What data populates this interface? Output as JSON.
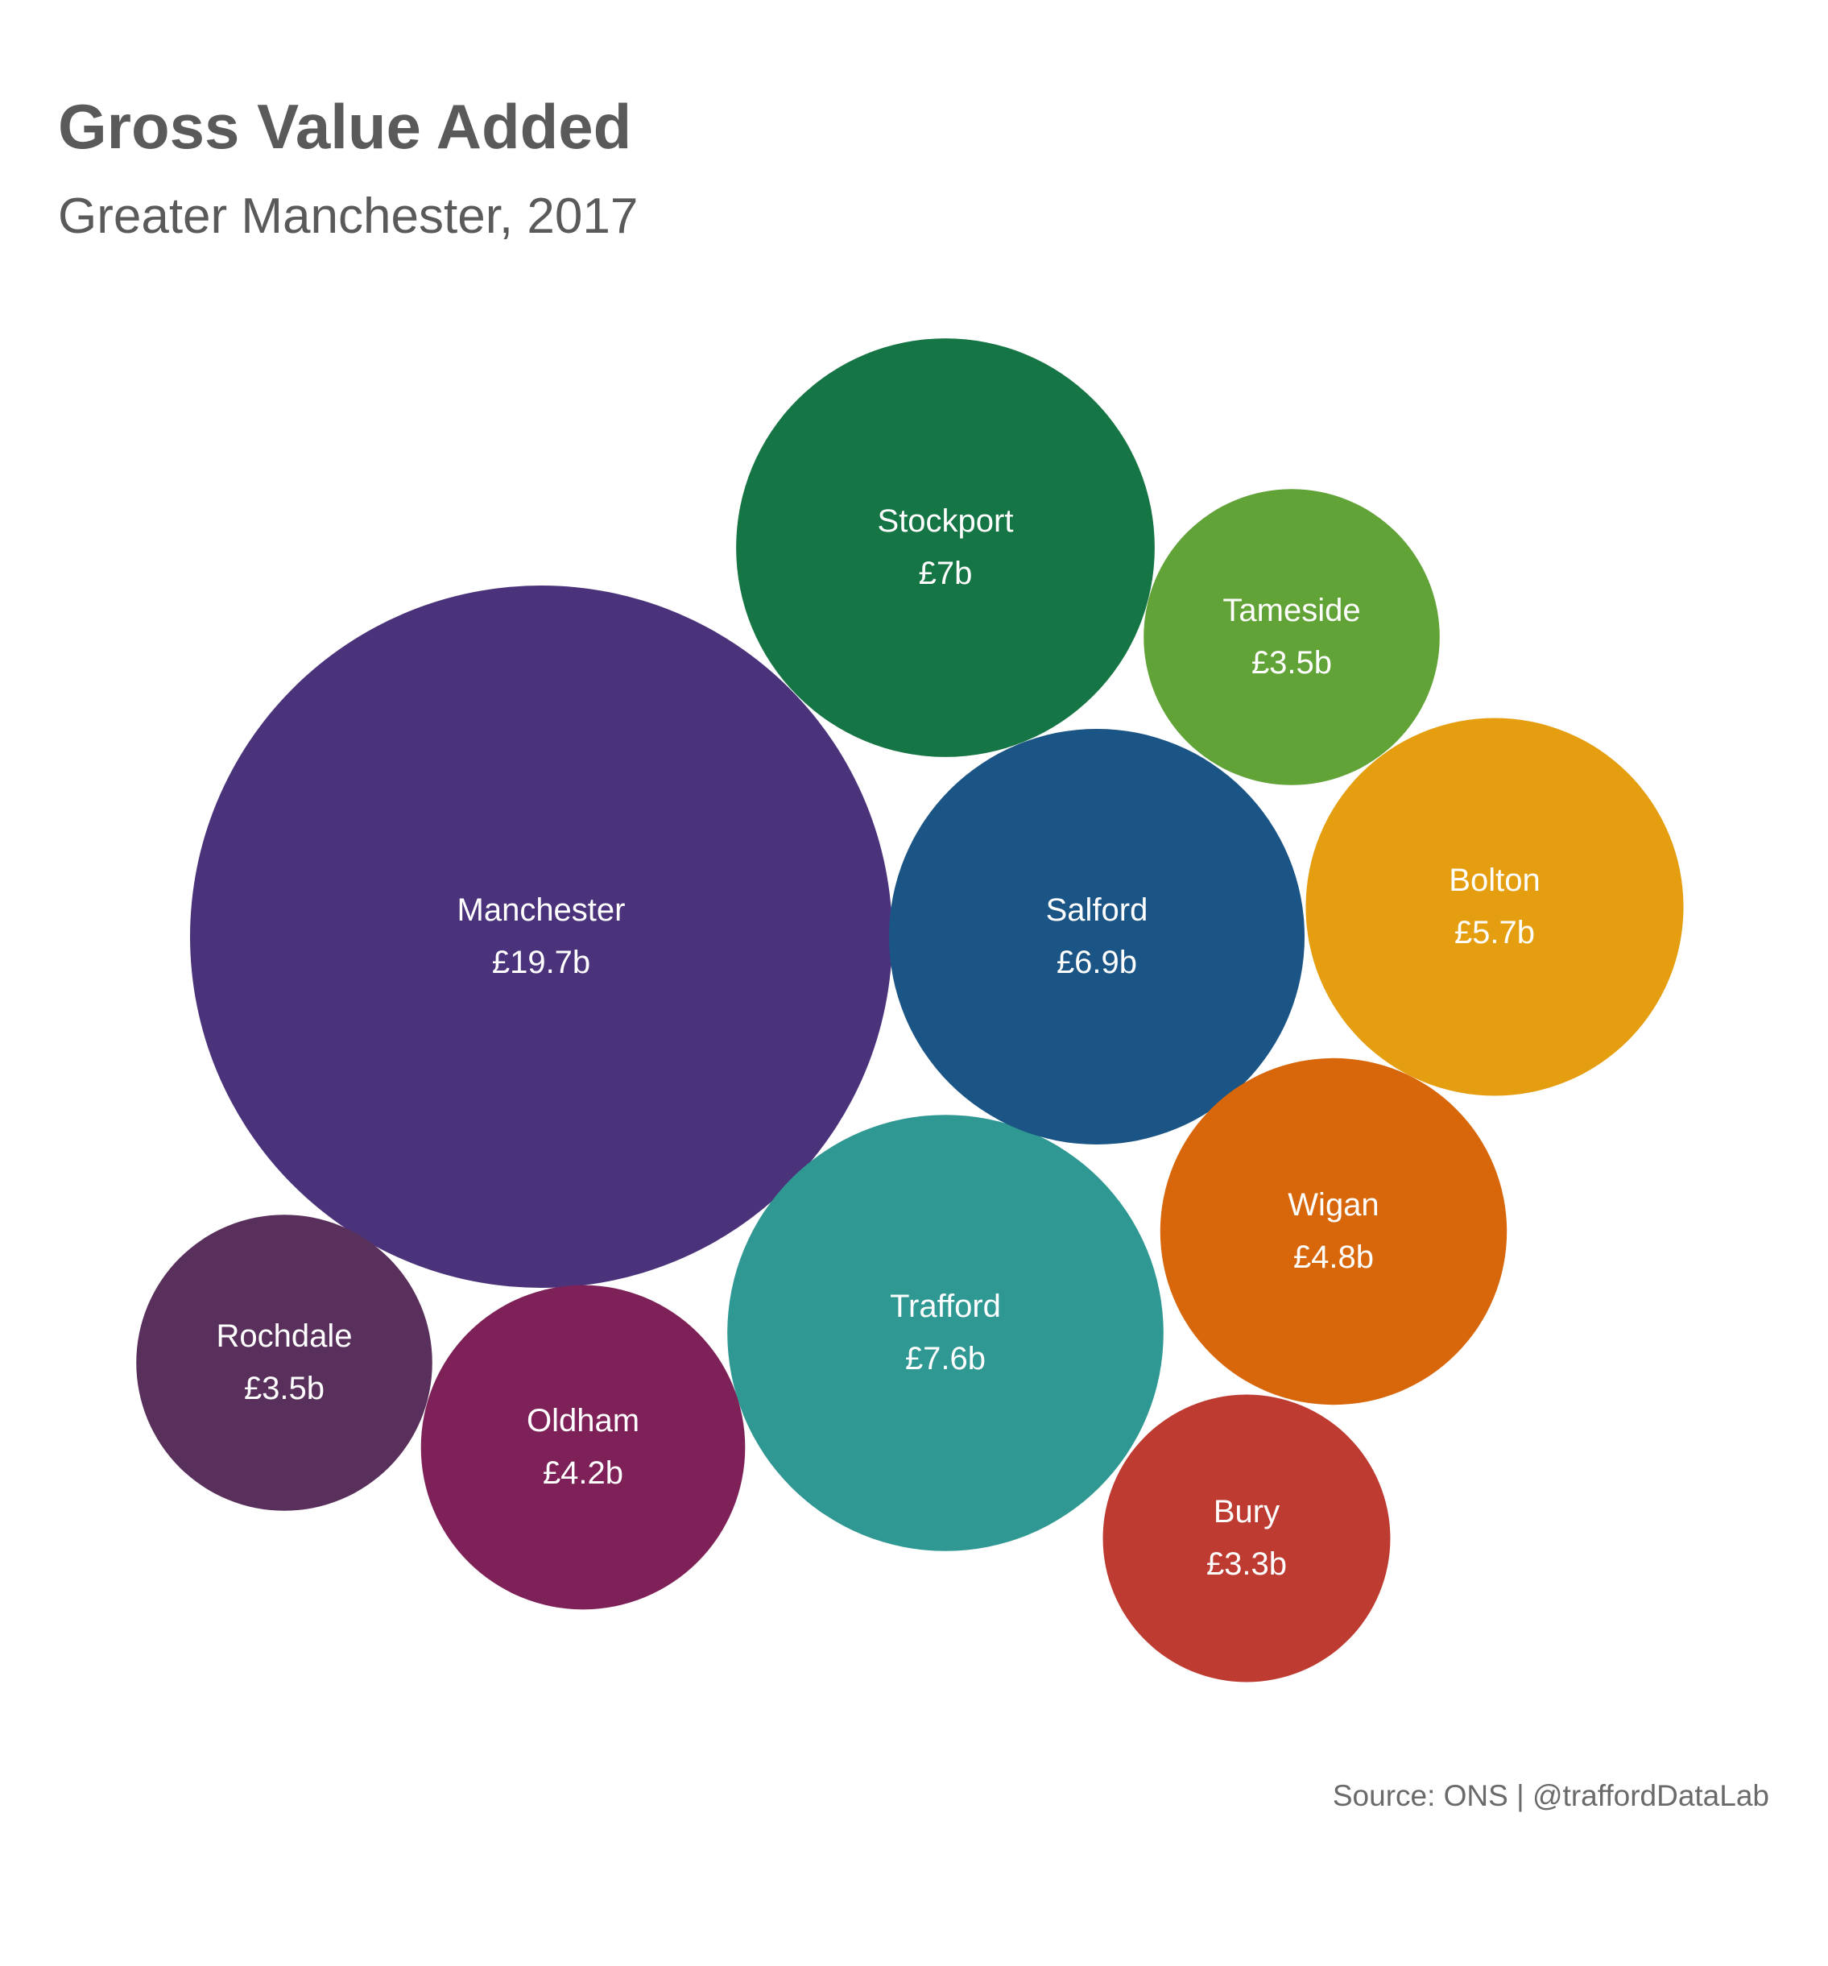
{
  "title": "Gross Value Added",
  "subtitle": "Greater Manchester, 2017",
  "caption": "Source: ONS | @traffordDataLab",
  "chart_data": {
    "type": "bubble",
    "title": "Gross Value Added",
    "subtitle": "Greater Manchester, 2017",
    "unit": "£ billion",
    "bubbles": [
      {
        "name": "Manchester",
        "value": 19.7,
        "label": "£19.7b",
        "color": "#4b337b"
      },
      {
        "name": "Trafford",
        "value": 7.6,
        "label": "£7.6b",
        "color": "#2f9893"
      },
      {
        "name": "Stockport",
        "value": 7.0,
        "label": "£7b",
        "color": "#167544"
      },
      {
        "name": "Salford",
        "value": 6.9,
        "label": "£6.9b",
        "color": "#1b5585"
      },
      {
        "name": "Bolton",
        "value": 5.7,
        "label": "£5.7b",
        "color": "#e49e0f"
      },
      {
        "name": "Wigan",
        "value": 4.8,
        "label": "£4.8b",
        "color": "#d8670b"
      },
      {
        "name": "Oldham",
        "value": 4.2,
        "label": "£4.2b",
        "color": "#7e2158"
      },
      {
        "name": "Tameside",
        "value": 3.5,
        "label": "£3.5b",
        "color": "#62a338"
      },
      {
        "name": "Rochdale",
        "value": 3.5,
        "label": "£3.5b",
        "color": "#592f5b"
      },
      {
        "name": "Bury",
        "value": 3.3,
        "label": "£3.3b",
        "color": "#bd3b30"
      }
    ]
  }
}
